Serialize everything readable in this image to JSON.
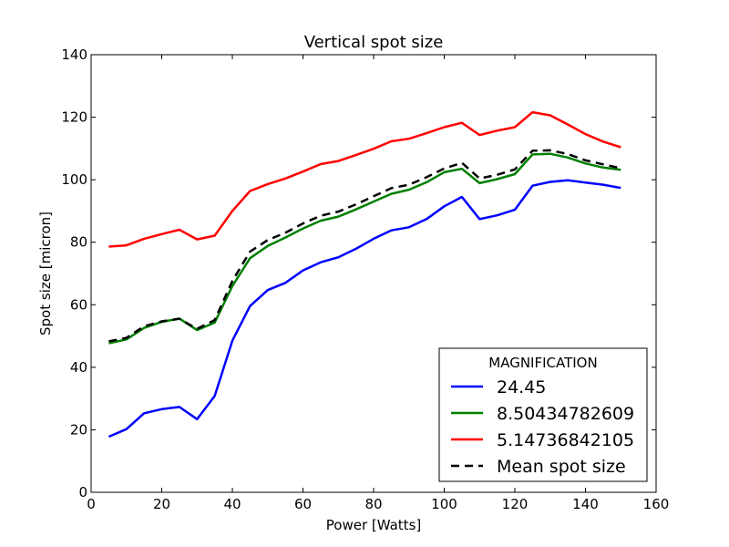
{
  "chart_data": {
    "type": "line",
    "title": "Vertical spot size",
    "xlabel": "Power [Watts]",
    "ylabel": "Spot size [micron]",
    "xlim": [
      0,
      160
    ],
    "ylim": [
      0,
      140
    ],
    "xticks": [
      0,
      20,
      40,
      60,
      80,
      100,
      120,
      140,
      160
    ],
    "yticks": [
      0,
      20,
      40,
      60,
      80,
      100,
      120,
      140
    ],
    "grid": false,
    "legend_title": "MAGNIFICATION",
    "legend_position": "bottom-right",
    "x": [
      5,
      10,
      15,
      20,
      25,
      30,
      35,
      40,
      45,
      50,
      55,
      60,
      65,
      70,
      75,
      80,
      85,
      90,
      95,
      100,
      105,
      110,
      115,
      120,
      125,
      130,
      135,
      140,
      145,
      150
    ],
    "series": [
      {
        "name": "24.45",
        "color": "#0000ff",
        "style": "solid",
        "values": [
          17.8,
          20.2,
          25.3,
          26.6,
          27.3,
          23.4,
          30.8,
          48.5,
          59.6,
          64.7,
          67.0,
          71.0,
          73.6,
          75.2,
          77.9,
          81.1,
          83.8,
          84.8,
          87.4,
          91.5,
          94.5,
          87.4,
          88.6,
          90.4,
          98.1,
          99.3,
          99.8,
          99.1,
          98.4,
          97.4
        ]
      },
      {
        "name": "8.50434782609",
        "color": "#008000",
        "style": "solid",
        "values": [
          47.7,
          48.9,
          52.6,
          54.5,
          55.6,
          51.9,
          54.3,
          66.0,
          74.9,
          78.8,
          81.5,
          84.4,
          86.9,
          88.2,
          90.5,
          93.0,
          95.5,
          96.8,
          99.2,
          102.4,
          103.5,
          98.9,
          100.2,
          101.8,
          108.1,
          108.3,
          107.1,
          105.2,
          103.9,
          103.2
        ]
      },
      {
        "name": "5.14736842105",
        "color": "#ff0000",
        "style": "solid",
        "values": [
          78.6,
          79.0,
          81.1,
          82.6,
          84.0,
          80.9,
          82.1,
          90.0,
          96.4,
          98.6,
          100.4,
          102.6,
          105.0,
          106.0,
          107.9,
          109.9,
          112.3,
          113.1,
          114.9,
          116.8,
          118.2,
          114.3,
          115.7,
          116.8,
          121.6,
          120.6,
          117.7,
          114.6,
          112.2,
          110.4
        ]
      },
      {
        "name": "Mean spot size",
        "color": "#000000",
        "style": "dashed",
        "values": [
          48.3,
          49.4,
          53.1,
          54.7,
          55.5,
          52.3,
          55.1,
          67.6,
          77.0,
          80.7,
          83.0,
          86.0,
          88.5,
          89.8,
          92.1,
          94.7,
          97.3,
          98.4,
          100.8,
          103.6,
          105.4,
          100.4,
          101.6,
          103.3,
          109.3,
          109.4,
          108.2,
          106.2,
          104.9,
          103.7
        ]
      }
    ]
  }
}
